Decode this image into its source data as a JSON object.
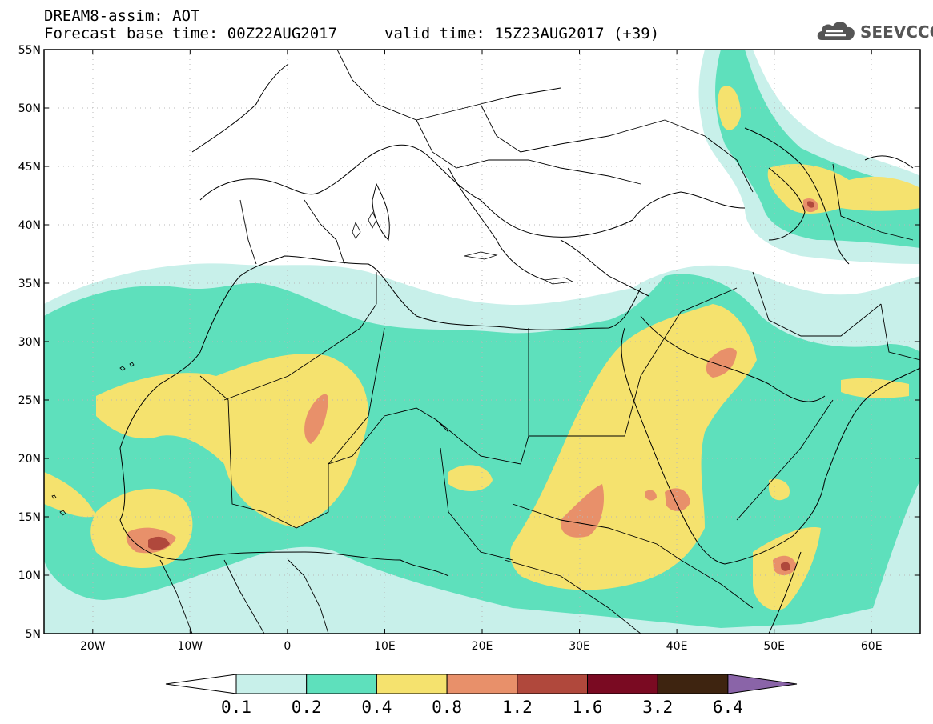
{
  "header": {
    "title": "DREAM8-assim: AOT",
    "base_time": "Forecast base time: 00Z22AUG2017",
    "valid_time": "valid time: 15Z23AUG2017 (+39)"
  },
  "logo": {
    "text": "SEEVCCC",
    "icon": "cloud-icon"
  },
  "map": {
    "lat_ticks": [
      "55N",
      "50N",
      "45N",
      "40N",
      "35N",
      "30N",
      "25N",
      "20N",
      "15N",
      "10N",
      "5N"
    ],
    "lon_ticks": [
      "20W",
      "10W",
      "0",
      "10E",
      "20E",
      "30E",
      "40E",
      "50E",
      "60E"
    ],
    "lon_range": [
      -25,
      65
    ],
    "lat_range": [
      5,
      55
    ]
  },
  "colorbar": {
    "labels": [
      "0.1",
      "0.2",
      "0.4",
      "0.8",
      "1.2",
      "1.6",
      "3.2",
      "6.4"
    ],
    "colors": [
      "#c8f0ea",
      "#5ee0bc",
      "#f5e26e",
      "#e8906a",
      "#b0483c",
      "#7a0a22",
      "#3e2410",
      "#8a64a8"
    ]
  }
}
